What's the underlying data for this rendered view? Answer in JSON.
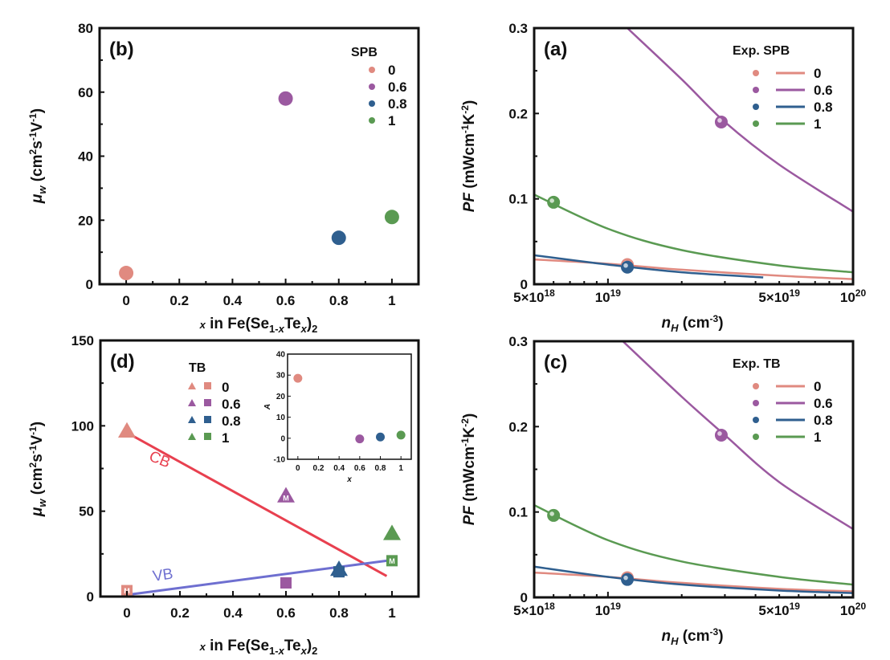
{
  "colors": {
    "x0": "#e08a80",
    "x06": "#9b59a0",
    "x08": "#2f5f8f",
    "x1": "#5a9a52",
    "cb_line": "#e8404f",
    "vb_line": "#6e6fd0"
  },
  "chart_data": [
    {
      "id": "b",
      "type": "scatter",
      "panel_label": "(b)",
      "title": "",
      "xlabel": "x in Fe(Se1-xTex)2",
      "ylabel": "μw (cm2s-1V-1)",
      "xlim": [
        -0.1,
        1.1
      ],
      "ylim": [
        0,
        80
      ],
      "xticks": [
        0,
        0.2,
        0.4,
        0.6,
        0.8,
        1
      ],
      "xtick_labels": [
        "0",
        "0.2",
        "0.4",
        "0.6",
        "0.8",
        "1"
      ],
      "yticks": [
        0,
        20,
        40,
        60,
        80
      ],
      "ytick_labels": [
        "0",
        "20",
        "40",
        "60",
        "80"
      ],
      "legend_title": "SPB",
      "legend_position": "top-right",
      "series": [
        {
          "name": "0",
          "color_key": "x0",
          "x": [
            0
          ],
          "y": [
            3.5
          ]
        },
        {
          "name": "0.6",
          "color_key": "x06",
          "x": [
            0.6
          ],
          "y": [
            58
          ]
        },
        {
          "name": "0.8",
          "color_key": "x08",
          "x": [
            0.8
          ],
          "y": [
            14.5
          ]
        },
        {
          "name": "1",
          "color_key": "x1",
          "x": [
            1
          ],
          "y": [
            21
          ]
        }
      ]
    },
    {
      "id": "a",
      "type": "line",
      "panel_label": "(a)",
      "xscale": "log",
      "xlabel": "nH (cm-3)",
      "ylabel": "PF (mWcm-1K-2)",
      "xlim": [
        5e+18,
        1e+20
      ],
      "ylim": [
        0,
        0.3
      ],
      "xticks": [
        5e+18,
        1e+19,
        5e+19,
        1e+20
      ],
      "xtick_labels": [
        [
          "5×10",
          "18"
        ],
        [
          "10",
          "19"
        ],
        [
          "5×10",
          "19"
        ],
        [
          "10",
          "20"
        ]
      ],
      "yticks": [
        0,
        0.1,
        0.2,
        0.3
      ],
      "ytick_labels": [
        "0",
        "0.1",
        "0.2",
        "0.3"
      ],
      "legend_title": "Exp. SPB",
      "legend_position": "top-right",
      "series": [
        {
          "name": "0",
          "color_key": "x0",
          "curve_x": [
            5e+18,
            1e+19,
            2e+19,
            5e+19,
            1e+20
          ],
          "curve_y": [
            0.029,
            0.024,
            0.017,
            0.01,
            0.006
          ],
          "exp_x": [
            1.2e+19
          ],
          "exp_y": [
            0.023
          ]
        },
        {
          "name": "0.6",
          "color_key": "x06",
          "curve_x": [
            1.2e+19,
            2e+19,
            3e+19,
            5e+19,
            1e+20
          ],
          "curve_y": [
            0.3,
            0.24,
            0.19,
            0.14,
            0.085
          ],
          "exp_x": [
            2.9e+19
          ],
          "exp_y": [
            0.19
          ]
        },
        {
          "name": "0.8",
          "color_key": "x08",
          "curve_x": [
            5e+18,
            1e+19,
            2e+19,
            4.3e+19
          ],
          "curve_y": [
            0.034,
            0.023,
            0.014,
            0.008
          ],
          "exp_x": [
            1.2e+19
          ],
          "exp_y": [
            0.02
          ]
        },
        {
          "name": "1",
          "color_key": "x1",
          "curve_x": [
            5e+18,
            1e+19,
            2e+19,
            5e+19,
            1e+20
          ],
          "curve_y": [
            0.105,
            0.065,
            0.04,
            0.022,
            0.014
          ],
          "exp_x": [
            6e+18
          ],
          "exp_y": [
            0.096
          ]
        }
      ]
    },
    {
      "id": "d",
      "type": "scatter",
      "panel_label": "(d)",
      "xlabel": "x in Fe(Se1-xTex)2",
      "ylabel": "μw (cm2s-1V-1)",
      "xlim": [
        -0.1,
        1.1
      ],
      "ylim": [
        0,
        150
      ],
      "xticks": [
        0,
        0.2,
        0.4,
        0.6,
        0.8,
        1
      ],
      "xtick_labels": [
        "0",
        "0.2",
        "0.4",
        "0.6",
        "0.8",
        "1"
      ],
      "yticks": [
        0,
        50,
        100,
        150
      ],
      "ytick_labels": [
        "0",
        "50",
        "100",
        "150"
      ],
      "legend_title": "TB",
      "legend_position": "top-left",
      "series": [
        {
          "name": "0",
          "color_key": "x0",
          "x": 0,
          "triangle": 97,
          "square": 3.5,
          "triangle_m": false,
          "square_m": true
        },
        {
          "name": "0.6",
          "color_key": "x06",
          "x": 0.6,
          "triangle": 59,
          "square": 8,
          "triangle_m": true,
          "square_m": false
        },
        {
          "name": "0.8",
          "color_key": "x08",
          "x": 0.8,
          "triangle": 16,
          "square": 14.5,
          "triangle_m": true,
          "square_m": false
        },
        {
          "name": "1",
          "color_key": "x1",
          "x": 1,
          "triangle": 37,
          "square": 21,
          "triangle_m": false,
          "square_m": true
        }
      ],
      "marker_text": "M",
      "lines": [
        {
          "name": "CB",
          "color_key": "cb_line",
          "x": [
            0,
            0.98
          ],
          "y": [
            96,
            12
          ],
          "label_x": 0.08,
          "label_y": 80
        },
        {
          "name": "VB",
          "color_key": "vb_line",
          "x": [
            0,
            0.98
          ],
          "y": [
            1,
            21
          ],
          "label_x": 0.1,
          "label_y": 9
        }
      ],
      "inset": {
        "xlabel": "x",
        "ylabel": "A",
        "xlim": [
          -0.1,
          1.1
        ],
        "ylim": [
          -10,
          40
        ],
        "xticks": [
          0,
          0.2,
          0.4,
          0.6,
          0.8,
          1
        ],
        "xtick_labels": [
          "0",
          "0.2",
          "0.4",
          "0.6",
          "0.8",
          "1"
        ],
        "yticks": [
          -10,
          0,
          10,
          20,
          30,
          40
        ],
        "ytick_labels": [
          "-10",
          "0",
          "10",
          "20",
          "30",
          "40"
        ],
        "points": [
          {
            "x": 0,
            "y": 28.5,
            "color_key": "x0"
          },
          {
            "x": 0.6,
            "y": -0.3,
            "color_key": "x06"
          },
          {
            "x": 0.8,
            "y": 0.6,
            "color_key": "x08"
          },
          {
            "x": 1,
            "y": 1.5,
            "color_key": "x1"
          }
        ]
      }
    },
    {
      "id": "c",
      "type": "line",
      "panel_label": "(c)",
      "xscale": "log",
      "xlabel": "nH (cm-3)",
      "ylabel": "PF (mWcm-1K-2)",
      "xlim": [
        5e+18,
        1e+20
      ],
      "ylim": [
        0,
        0.3
      ],
      "xticks": [
        5e+18,
        1e+19,
        5e+19,
        1e+20
      ],
      "xtick_labels": [
        [
          "5×10",
          "18"
        ],
        [
          "10",
          "19"
        ],
        [
          "5×10",
          "19"
        ],
        [
          "10",
          "20"
        ]
      ],
      "yticks": [
        0,
        0.1,
        0.2,
        0.3
      ],
      "ytick_labels": [
        "0",
        "0.1",
        "0.2",
        "0.3"
      ],
      "legend_title": "Exp.  TB",
      "legend_position": "top-right",
      "series": [
        {
          "name": "0",
          "color_key": "x0",
          "curve_x": [
            5e+18,
            1e+19,
            2e+19,
            5e+19,
            1e+20
          ],
          "curve_y": [
            0.029,
            0.024,
            0.017,
            0.01,
            0.007
          ],
          "exp_x": [
            1.2e+19
          ],
          "exp_y": [
            0.023
          ]
        },
        {
          "name": "0.6",
          "color_key": "x06",
          "curve_x": [
            1.15e+19,
            2e+19,
            3e+19,
            5e+19,
            1e+20
          ],
          "curve_y": [
            0.3,
            0.235,
            0.19,
            0.135,
            0.08
          ],
          "exp_x": [
            2.9e+19
          ],
          "exp_y": [
            0.19
          ]
        },
        {
          "name": "0.8",
          "color_key": "x08",
          "curve_x": [
            5e+18,
            1e+19,
            2e+19,
            5e+19,
            1e+20
          ],
          "curve_y": [
            0.036,
            0.024,
            0.015,
            0.008,
            0.005
          ],
          "exp_x": [
            1.2e+19
          ],
          "exp_y": [
            0.021
          ]
        },
        {
          "name": "1",
          "color_key": "x1",
          "curve_x": [
            5e+18,
            1e+19,
            2e+19,
            5e+19,
            1e+20
          ],
          "curve_y": [
            0.108,
            0.067,
            0.042,
            0.024,
            0.015
          ],
          "exp_x": [
            6e+18
          ],
          "exp_y": [
            0.096
          ]
        }
      ]
    }
  ]
}
